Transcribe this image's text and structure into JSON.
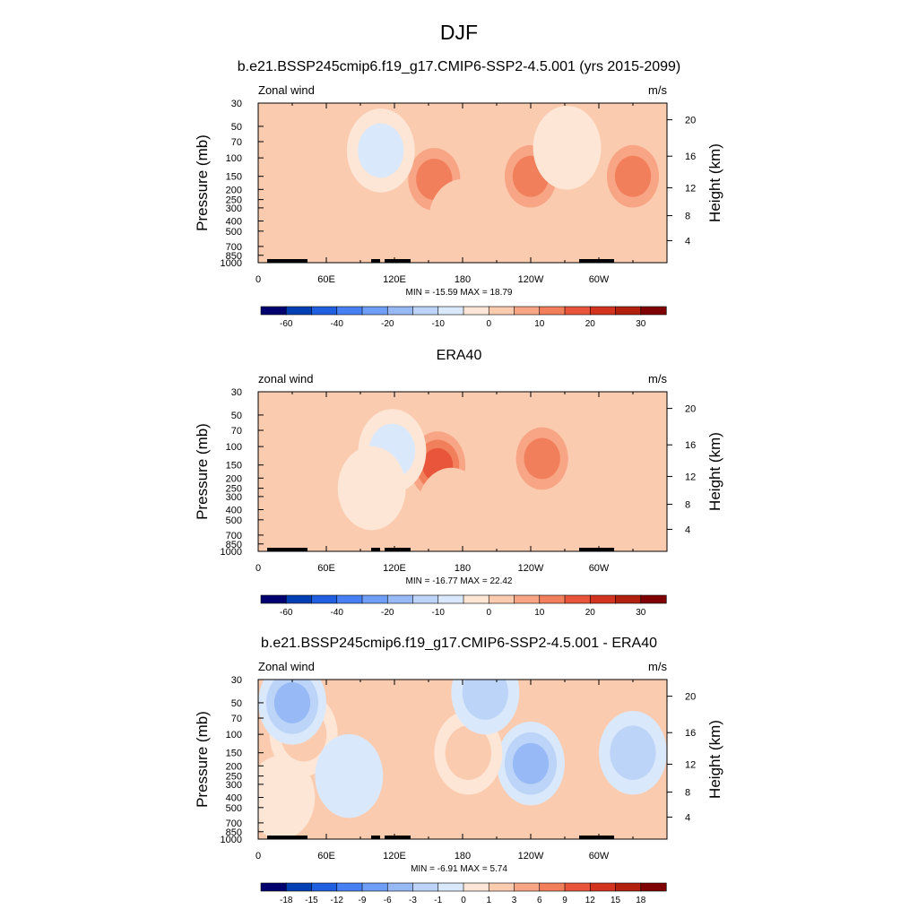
{
  "main_title": "DJF",
  "chart_data": [
    {
      "type": "heatmap",
      "title": "b.e21.BSSP245cmip6.f19_g17.CMIP6-SSP2-4.5.001 (yrs 2015-2099)",
      "left_label": "Zonal wind",
      "right_label": "m/s",
      "ylabel": "Pressure (mb)",
      "ylabel_right": "Height (km)",
      "xticks": [
        "0",
        "60E",
        "120E",
        "180",
        "120W",
        "60W"
      ],
      "xtick_values": [
        0,
        60,
        120,
        180,
        240,
        300
      ],
      "xlim": [
        0,
        360
      ],
      "yticks": [
        "30",
        "50",
        "70",
        "100",
        "150",
        "200",
        "250",
        "300",
        "400",
        "500",
        "700",
        "850",
        "1000"
      ],
      "ytick_values": [
        30,
        50,
        70,
        100,
        150,
        200,
        250,
        300,
        400,
        500,
        700,
        850,
        1000
      ],
      "ylim": [
        1000,
        30
      ],
      "yticks_right": [
        "20",
        "16",
        "12",
        "8",
        "4"
      ],
      "ytick_right_values": [
        20,
        16,
        12,
        8,
        4
      ],
      "stats": "MIN = -15.59  MAX =  18.79",
      "min": -15.59,
      "max": 18.79,
      "colorbar_levels": [
        -70,
        -60,
        -50,
        -40,
        -30,
        -20,
        -15,
        -10,
        -5,
        0,
        5,
        10,
        15,
        20,
        25,
        30,
        35
      ],
      "colorbar_labels": [
        "-60",
        "-40",
        "-20",
        "-10",
        "0",
        "10",
        "20",
        "30"
      ],
      "colorbar_label_boundaries": [
        -60,
        -40,
        -20,
        -10,
        0,
        10,
        20,
        30
      ],
      "features": [
        {
          "lon": 155,
          "p": 160,
          "value": 17
        },
        {
          "lon": 240,
          "p": 150,
          "value": 18
        },
        {
          "lon": 272,
          "p": 80,
          "value": -3
        },
        {
          "lon": 180,
          "p": 400,
          "value": 4
        },
        {
          "lon": 330,
          "p": 150,
          "value": 15
        },
        {
          "lon": 108,
          "p": 85,
          "value": -14
        }
      ]
    },
    {
      "type": "heatmap",
      "title": "ERA40",
      "left_label": "zonal wind",
      "right_label": "m/s",
      "ylabel": "Pressure (mb)",
      "ylabel_right": "Height (km)",
      "xticks": [
        "0",
        "60E",
        "120E",
        "180",
        "120W",
        "60W"
      ],
      "xtick_values": [
        0,
        60,
        120,
        180,
        240,
        300
      ],
      "xlim": [
        0,
        360
      ],
      "yticks": [
        "30",
        "50",
        "70",
        "100",
        "150",
        "200",
        "250",
        "300",
        "400",
        "500",
        "700",
        "850",
        "1000"
      ],
      "ytick_values": [
        30,
        50,
        70,
        100,
        150,
        200,
        250,
        300,
        400,
        500,
        700,
        850,
        1000
      ],
      "ylim": [
        1000,
        30
      ],
      "yticks_right": [
        "20",
        "16",
        "12",
        "8",
        "4"
      ],
      "ytick_right_values": [
        20,
        16,
        12,
        8,
        4
      ],
      "stats": "MIN = -16.77  MAX =  22.42",
      "min": -16.77,
      "max": 22.42,
      "colorbar_levels": [
        -70,
        -60,
        -50,
        -40,
        -30,
        -20,
        -15,
        -10,
        -5,
        0,
        5,
        10,
        15,
        20,
        25,
        30,
        35
      ],
      "colorbar_labels": [
        "-60",
        "-40",
        "-20",
        "-10",
        "0",
        "10",
        "20",
        "30"
      ],
      "colorbar_label_boundaries": [
        -60,
        -40,
        -20,
        -10,
        0,
        10,
        20,
        30
      ],
      "features": [
        {
          "lon": 158,
          "p": 150,
          "value": 22
        },
        {
          "lon": 250,
          "p": 130,
          "value": 16
        },
        {
          "lon": 118,
          "p": 110,
          "value": -14
        },
        {
          "lon": 170,
          "p": 400,
          "value": 5
        },
        {
          "lon": 100,
          "p": 250,
          "value": -4
        }
      ]
    },
    {
      "type": "heatmap",
      "title": "b.e21.BSSP245cmip6.f19_g17.CMIP6-SSP2-4.5.001 - ERA40",
      "left_label": "Zonal wind",
      "right_label": "m/s",
      "ylabel": "Pressure (mb)",
      "ylabel_right": "Height (km)",
      "xticks": [
        "0",
        "60E",
        "120E",
        "180",
        "120W",
        "60W"
      ],
      "xtick_values": [
        0,
        60,
        120,
        180,
        240,
        300
      ],
      "xlim": [
        0,
        360
      ],
      "yticks": [
        "30",
        "50",
        "70",
        "100",
        "150",
        "200",
        "250",
        "300",
        "400",
        "500",
        "700",
        "850",
        "1000"
      ],
      "ytick_values": [
        30,
        50,
        70,
        100,
        150,
        200,
        250,
        300,
        400,
        500,
        700,
        850,
        1000
      ],
      "ylim": [
        1000,
        30
      ],
      "yticks_right": [
        "20",
        "16",
        "12",
        "8",
        "4"
      ],
      "ytick_right_values": [
        20,
        16,
        12,
        8,
        4
      ],
      "stats": "MIN = -6.91  MAX =  5.74",
      "min": -6.91,
      "max": 5.74,
      "colorbar_levels": [
        -21,
        -18,
        -15,
        -12,
        -9,
        -6,
        -3,
        -1,
        0,
        1,
        3,
        6,
        9,
        12,
        15,
        18,
        21
      ],
      "colorbar_labels": [
        "-18",
        "-15",
        "-12",
        "-9",
        "-6",
        "-3",
        "-1",
        "0",
        "1",
        "3",
        "6",
        "9",
        "12",
        "15",
        "18"
      ],
      "colorbar_label_boundaries": [
        -18,
        -15,
        -12,
        -9,
        -6,
        -3,
        -1,
        0,
        1,
        3,
        6,
        9,
        12,
        15,
        18
      ],
      "features": [
        {
          "lon": 240,
          "p": 190,
          "value": -6.9
        },
        {
          "lon": 330,
          "p": 150,
          "value": -4
        },
        {
          "lon": 185,
          "p": 150,
          "value": 5.7
        },
        {
          "lon": 40,
          "p": 100,
          "value": 3
        },
        {
          "lon": 30,
          "p": 50,
          "value": -6
        },
        {
          "lon": 200,
          "p": 40,
          "value": -3
        },
        {
          "lon": 20,
          "p": 400,
          "value": 2
        },
        {
          "lon": 80,
          "p": 250,
          "value": -2.5
        }
      ]
    }
  ],
  "colors": {
    "scale": [
      "#00006f",
      "#003fb3",
      "#1f5fe0",
      "#4680f2",
      "#6e9ef5",
      "#97baf7",
      "#bcd4f8",
      "#dae8fb",
      "#fde6d5",
      "#fbcbb0",
      "#f7a585",
      "#f27f5b",
      "#e8553a",
      "#d23420",
      "#b2200e",
      "#7e0000"
    ],
    "topography": "#000000",
    "border": "#000000"
  }
}
